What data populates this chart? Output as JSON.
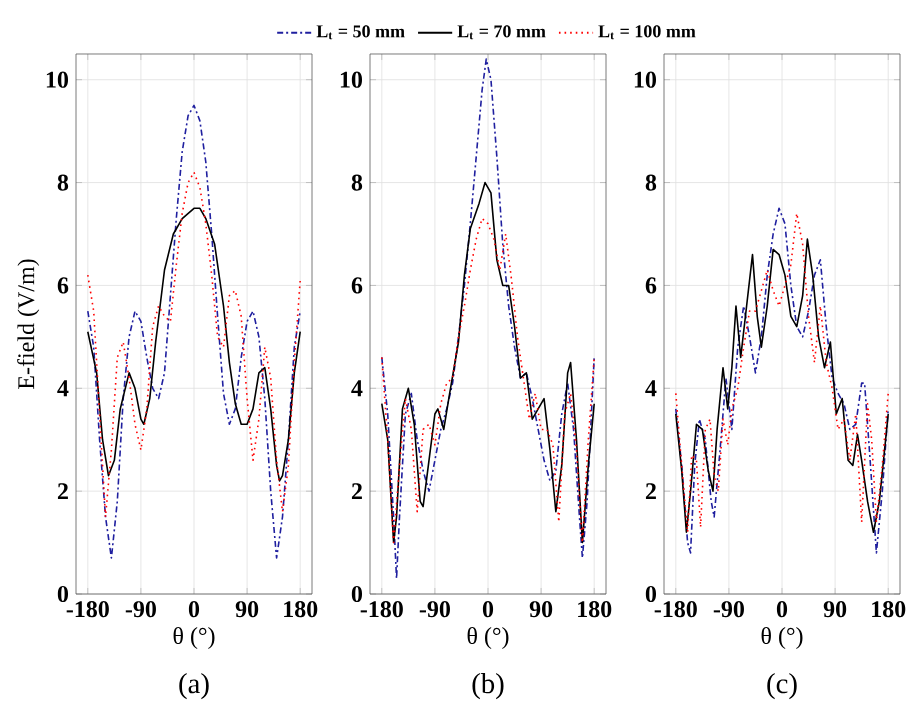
{
  "chart_data": [
    {
      "type": "line",
      "title": "(a)",
      "xlabel": "θ (°)",
      "ylabel": "E-field (V/m)",
      "xlim": [
        -200,
        200
      ],
      "ylim": [
        0,
        10.5
      ],
      "xticks": [
        -180,
        -90,
        0,
        90,
        180
      ],
      "yticks": [
        0,
        2,
        4,
        6,
        8,
        10
      ],
      "grid": true,
      "marker": "none",
      "series": [
        {
          "color": "#1f1f9f",
          "line_style": "dashed",
          "x": [
            -180,
            -170,
            -160,
            -150,
            -140,
            -130,
            -120,
            -110,
            -100,
            -90,
            -80,
            -70,
            -60,
            -50,
            -40,
            -30,
            -20,
            -10,
            0,
            10,
            20,
            30,
            40,
            50,
            60,
            70,
            80,
            90,
            100,
            110,
            120,
            130,
            140,
            150,
            160,
            170,
            180
          ],
          "values": [
            5.5,
            4.8,
            3.0,
            1.5,
            0.7,
            1.8,
            3.8,
            5.0,
            5.5,
            5.3,
            4.6,
            4.0,
            3.8,
            4.3,
            5.8,
            7.3,
            8.6,
            9.3,
            9.5,
            9.2,
            8.4,
            7.0,
            5.4,
            3.9,
            3.3,
            3.6,
            4.6,
            5.3,
            5.5,
            5.0,
            3.8,
            2.0,
            0.7,
            1.5,
            3.0,
            4.8,
            5.5
          ]
        },
        {
          "color": "#000000",
          "line_style": "solid",
          "x": [
            -180,
            -165,
            -155,
            -145,
            -135,
            -125,
            -110,
            -100,
            -90,
            -85,
            -75,
            -65,
            -50,
            -35,
            -20,
            0,
            10,
            20,
            35,
            50,
            60,
            70,
            80,
            90,
            100,
            110,
            120,
            130,
            140,
            145,
            150,
            160,
            170,
            180
          ],
          "values": [
            5.1,
            4.3,
            3.0,
            2.3,
            2.6,
            3.6,
            4.3,
            4.0,
            3.4,
            3.3,
            3.8,
            4.9,
            6.3,
            7.0,
            7.3,
            7.5,
            7.5,
            7.3,
            6.8,
            5.6,
            4.5,
            3.7,
            3.3,
            3.3,
            3.6,
            4.3,
            4.4,
            3.6,
            2.5,
            2.2,
            2.3,
            3.0,
            4.3,
            5.1
          ]
        },
        {
          "color": "#ff0000",
          "line_style": "dotted",
          "x": [
            -180,
            -170,
            -160,
            -150,
            -140,
            -130,
            -120,
            -110,
            -100,
            -90,
            -80,
            -70,
            -60,
            -50,
            -40,
            -30,
            -20,
            -10,
            0,
            10,
            20,
            30,
            40,
            50,
            60,
            70,
            80,
            90,
            100,
            110,
            120,
            130,
            140,
            150,
            160,
            170,
            180
          ],
          "values": [
            6.2,
            5.5,
            3.5,
            1.5,
            2.8,
            4.6,
            4.9,
            4.2,
            3.3,
            2.8,
            3.6,
            5.2,
            5.6,
            5.4,
            5.3,
            6.4,
            7.4,
            8.0,
            8.2,
            7.9,
            7.2,
            6.2,
            5.0,
            4.8,
            5.8,
            5.9,
            5.4,
            3.8,
            2.6,
            3.4,
            4.8,
            4.2,
            2.6,
            1.6,
            2.5,
            4.5,
            6.1
          ]
        }
      ]
    },
    {
      "type": "line",
      "title": "(b)",
      "xlabel": "θ (°)",
      "xlim": [
        -200,
        200
      ],
      "ylim": [
        0,
        10.5
      ],
      "xticks": [
        -180,
        -90,
        0,
        90,
        180
      ],
      "yticks": [
        0,
        2,
        4,
        6,
        8,
        10
      ],
      "grid": true,
      "marker": "none",
      "legend": "top",
      "series": [
        {
          "name": "L$_{t}$ = 50 mm",
          "color": "#1f1f9f",
          "line_style": "dashed",
          "x": [
            -180,
            -170,
            -160,
            -155,
            -150,
            -140,
            -130,
            -120,
            -110,
            -100,
            -90,
            -80,
            -70,
            -60,
            -50,
            -40,
            -30,
            -20,
            -10,
            -3,
            5,
            15,
            25,
            35,
            45,
            55,
            65,
            75,
            85,
            95,
            105,
            115,
            125,
            135,
            145,
            155,
            160,
            168,
            180
          ],
          "values": [
            4.6,
            3.5,
            1.5,
            0.3,
            1.5,
            3.5,
            3.9,
            3.0,
            2.4,
            2.0,
            2.6,
            3.2,
            3.6,
            4.1,
            5.0,
            6.0,
            7.2,
            8.5,
            9.8,
            10.4,
            10.0,
            8.5,
            6.8,
            5.6,
            4.8,
            4.2,
            4.3,
            3.8,
            3.2,
            2.6,
            2.2,
            2.4,
            3.5,
            4.1,
            3.2,
            1.5,
            0.7,
            1.8,
            4.6
          ]
        },
        {
          "name": "L$_{t}$ = 70 mm",
          "color": "#000000",
          "line_style": "solid",
          "x": [
            -180,
            -170,
            -160,
            -155,
            -145,
            -135,
            -125,
            -115,
            -110,
            -100,
            -90,
            -85,
            -75,
            -65,
            -50,
            -40,
            -30,
            -15,
            -5,
            5,
            15,
            25,
            35,
            45,
            55,
            65,
            75,
            85,
            95,
            105,
            115,
            125,
            135,
            140,
            150,
            160,
            170,
            180
          ],
          "values": [
            3.7,
            3.0,
            1.0,
            1.5,
            3.6,
            4.0,
            3.3,
            1.8,
            1.7,
            2.6,
            3.5,
            3.6,
            3.2,
            3.9,
            4.9,
            6.2,
            7.1,
            7.6,
            8.0,
            7.8,
            6.5,
            6.0,
            6.0,
            5.2,
            4.2,
            4.3,
            3.4,
            3.6,
            3.8,
            2.8,
            1.6,
            2.5,
            4.3,
            4.5,
            3.0,
            1.0,
            2.5,
            3.7
          ]
        },
        {
          "name": "L$_{t}$ = 100 mm",
          "color": "#ff0000",
          "line_style": "dotted",
          "x": [
            -180,
            -170,
            -160,
            -150,
            -140,
            -130,
            -120,
            -110,
            -100,
            -90,
            -80,
            -70,
            -60,
            -50,
            -40,
            -30,
            -20,
            -10,
            0,
            10,
            20,
            30,
            40,
            50,
            60,
            70,
            80,
            90,
            100,
            110,
            120,
            130,
            140,
            150,
            160,
            170,
            180
          ],
          "values": [
            4.6,
            3.0,
            1.0,
            2.5,
            3.8,
            3.2,
            1.6,
            3.2,
            3.3,
            2.9,
            3.7,
            4.1,
            4.2,
            5.0,
            5.6,
            6.3,
            6.9,
            7.3,
            7.2,
            6.9,
            6.3,
            7.0,
            6.1,
            5.0,
            4.2,
            3.4,
            3.9,
            3.2,
            3.2,
            2.9,
            1.4,
            3.5,
            3.9,
            2.8,
            1.0,
            3.0,
            4.6
          ]
        }
      ]
    },
    {
      "type": "line",
      "title": "(c)",
      "xlabel": "θ (°)",
      "xlim": [
        -200,
        200
      ],
      "ylim": [
        0,
        10.5
      ],
      "xticks": [
        -180,
        -90,
        0,
        90,
        180
      ],
      "yticks": [
        0,
        2,
        4,
        6,
        8,
        10
      ],
      "grid": true,
      "marker": "none",
      "series": [
        {
          "color": "#1f1f9f",
          "line_style": "dashed",
          "x": [
            -180,
            -170,
            -160,
            -155,
            -148,
            -140,
            -130,
            -120,
            -115,
            -105,
            -95,
            -85,
            -75,
            -65,
            -55,
            -45,
            -35,
            -25,
            -15,
            -5,
            5,
            15,
            25,
            35,
            45,
            55,
            65,
            75,
            85,
            95,
            105,
            115,
            125,
            135,
            140,
            150,
            160,
            170,
            180
          ],
          "values": [
            3.6,
            2.5,
            1.0,
            0.8,
            2.5,
            3.4,
            3.0,
            1.8,
            1.5,
            2.8,
            4.2,
            3.2,
            4.8,
            5.6,
            5.0,
            4.3,
            5.0,
            6.2,
            7.0,
            7.5,
            7.2,
            6.0,
            5.2,
            5.0,
            5.5,
            6.2,
            6.5,
            5.2,
            4.2,
            3.9,
            3.7,
            3.2,
            3.3,
            4.1,
            4.1,
            2.5,
            0.8,
            2.0,
            3.6
          ]
        },
        {
          "color": "#000000",
          "line_style": "solid",
          "x": [
            -180,
            -170,
            -162,
            -155,
            -145,
            -135,
            -125,
            -117,
            -110,
            -100,
            -92,
            -85,
            -78,
            -70,
            -60,
            -50,
            -42,
            -35,
            -25,
            -15,
            -5,
            5,
            15,
            25,
            35,
            43,
            52,
            62,
            72,
            82,
            92,
            102,
            112,
            120,
            128,
            135,
            145,
            155,
            165,
            180
          ],
          "values": [
            3.5,
            2.4,
            1.2,
            2.0,
            3.3,
            3.2,
            2.4,
            2.0,
            3.2,
            4.4,
            3.6,
            4.4,
            5.6,
            4.6,
            5.6,
            6.6,
            5.4,
            4.8,
            5.6,
            6.7,
            6.6,
            6.2,
            5.4,
            5.2,
            5.8,
            6.9,
            6.2,
            5.0,
            4.4,
            4.9,
            3.5,
            3.8,
            2.6,
            2.5,
            3.1,
            2.6,
            1.8,
            1.2,
            1.8,
            3.5
          ]
        },
        {
          "color": "#ff0000",
          "line_style": "dotted",
          "x": [
            -180,
            -170,
            -160,
            -153,
            -145,
            -138,
            -130,
            -122,
            -115,
            -108,
            -100,
            -92,
            -85,
            -75,
            -65,
            -55,
            -45,
            -35,
            -25,
            -15,
            -5,
            5,
            15,
            25,
            35,
            45,
            55,
            65,
            75,
            85,
            95,
            105,
            115,
            125,
            135,
            145,
            152,
            160,
            170,
            180
          ],
          "values": [
            3.9,
            2.5,
            1.2,
            2.7,
            2.6,
            1.3,
            3.2,
            3.4,
            2.3,
            2.0,
            3.4,
            2.9,
            3.6,
            4.0,
            4.8,
            5.5,
            5.5,
            5.9,
            6.3,
            5.9,
            5.6,
            6.0,
            6.4,
            7.4,
            6.8,
            5.4,
            4.5,
            5.6,
            4.5,
            4.0,
            3.2,
            3.4,
            2.6,
            3.5,
            1.4,
            3.7,
            3.0,
            1.4,
            2.5,
            3.9
          ]
        }
      ]
    }
  ]
}
